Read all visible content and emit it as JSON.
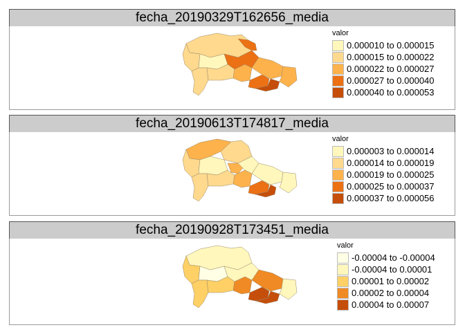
{
  "panels": [
    {
      "title": "fecha_20190329T162656_media",
      "legend": {
        "title": "valor",
        "items": [
          {
            "label": "0.000010 to 0.000015",
            "color": "#FFF7BC"
          },
          {
            "label": "0.000015 to 0.000022",
            "color": "#FED98E"
          },
          {
            "label": "0.000022 to 0.000027",
            "color": "#FEB24C"
          },
          {
            "label": "0.000027 to 0.000040",
            "color": "#EC7014"
          },
          {
            "label": "0.000040 to 0.000053",
            "color": "#C54E0A"
          }
        ]
      }
    },
    {
      "title": "fecha_20190613T174817_media",
      "legend": {
        "title": "valor",
        "items": [
          {
            "label": "0.000003 to 0.000014",
            "color": "#FFF7BC"
          },
          {
            "label": "0.000014 to 0.000019",
            "color": "#FED98E"
          },
          {
            "label": "0.000019 to 0.000025",
            "color": "#FEB24C"
          },
          {
            "label": "0.000025 to 0.000037",
            "color": "#EC7014"
          },
          {
            "label": "0.000037 to 0.000056",
            "color": "#C54E0A"
          }
        ]
      }
    },
    {
      "title": "fecha_20190928T173451_media",
      "legend": {
        "title": "valor",
        "items": [
          {
            "label": "-0.00004 to -0.00004",
            "color": "#FFFFE5"
          },
          {
            "label": "-0.00004 to 0.00001",
            "color": "#FFF7BC"
          },
          {
            "label": "0.00001 to 0.00002",
            "color": "#FED065"
          },
          {
            "label": "0.00002 to 0.00004",
            "color": "#F08A24"
          },
          {
            "label": "0.00004 to 0.00007",
            "color": "#C54E0A"
          }
        ]
      }
    }
  ]
}
